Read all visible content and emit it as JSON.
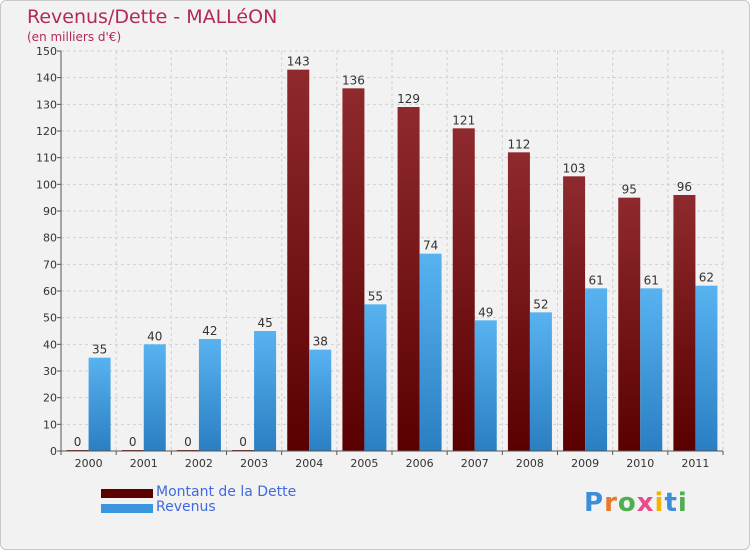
{
  "chart_data": {
    "type": "bar",
    "title": "Revenus/Dette - MALLéON",
    "subtitle": "(en milliers d'€)",
    "categories": [
      "2000",
      "2001",
      "2002",
      "2003",
      "2004",
      "2005",
      "2006",
      "2007",
      "2008",
      "2009",
      "2010",
      "2011"
    ],
    "series": [
      {
        "name": "Montant de la Dette",
        "color": "#7a0f12",
        "values": [
          0,
          0,
          0,
          0,
          143,
          136,
          129,
          121,
          112,
          103,
          95,
          96
        ]
      },
      {
        "name": "Revenus",
        "color": "#4aa3e6",
        "values": [
          35,
          40,
          42,
          45,
          38,
          55,
          74,
          49,
          52,
          61,
          61,
          62
        ]
      }
    ],
    "ylim": [
      0,
      150
    ],
    "yticks": [
      0,
      10,
      20,
      30,
      40,
      50,
      60,
      70,
      80,
      90,
      100,
      110,
      120,
      130,
      140,
      150
    ],
    "grid": true,
    "legend_position": "bottom-left"
  },
  "logo": {
    "text": "Proxiti"
  }
}
